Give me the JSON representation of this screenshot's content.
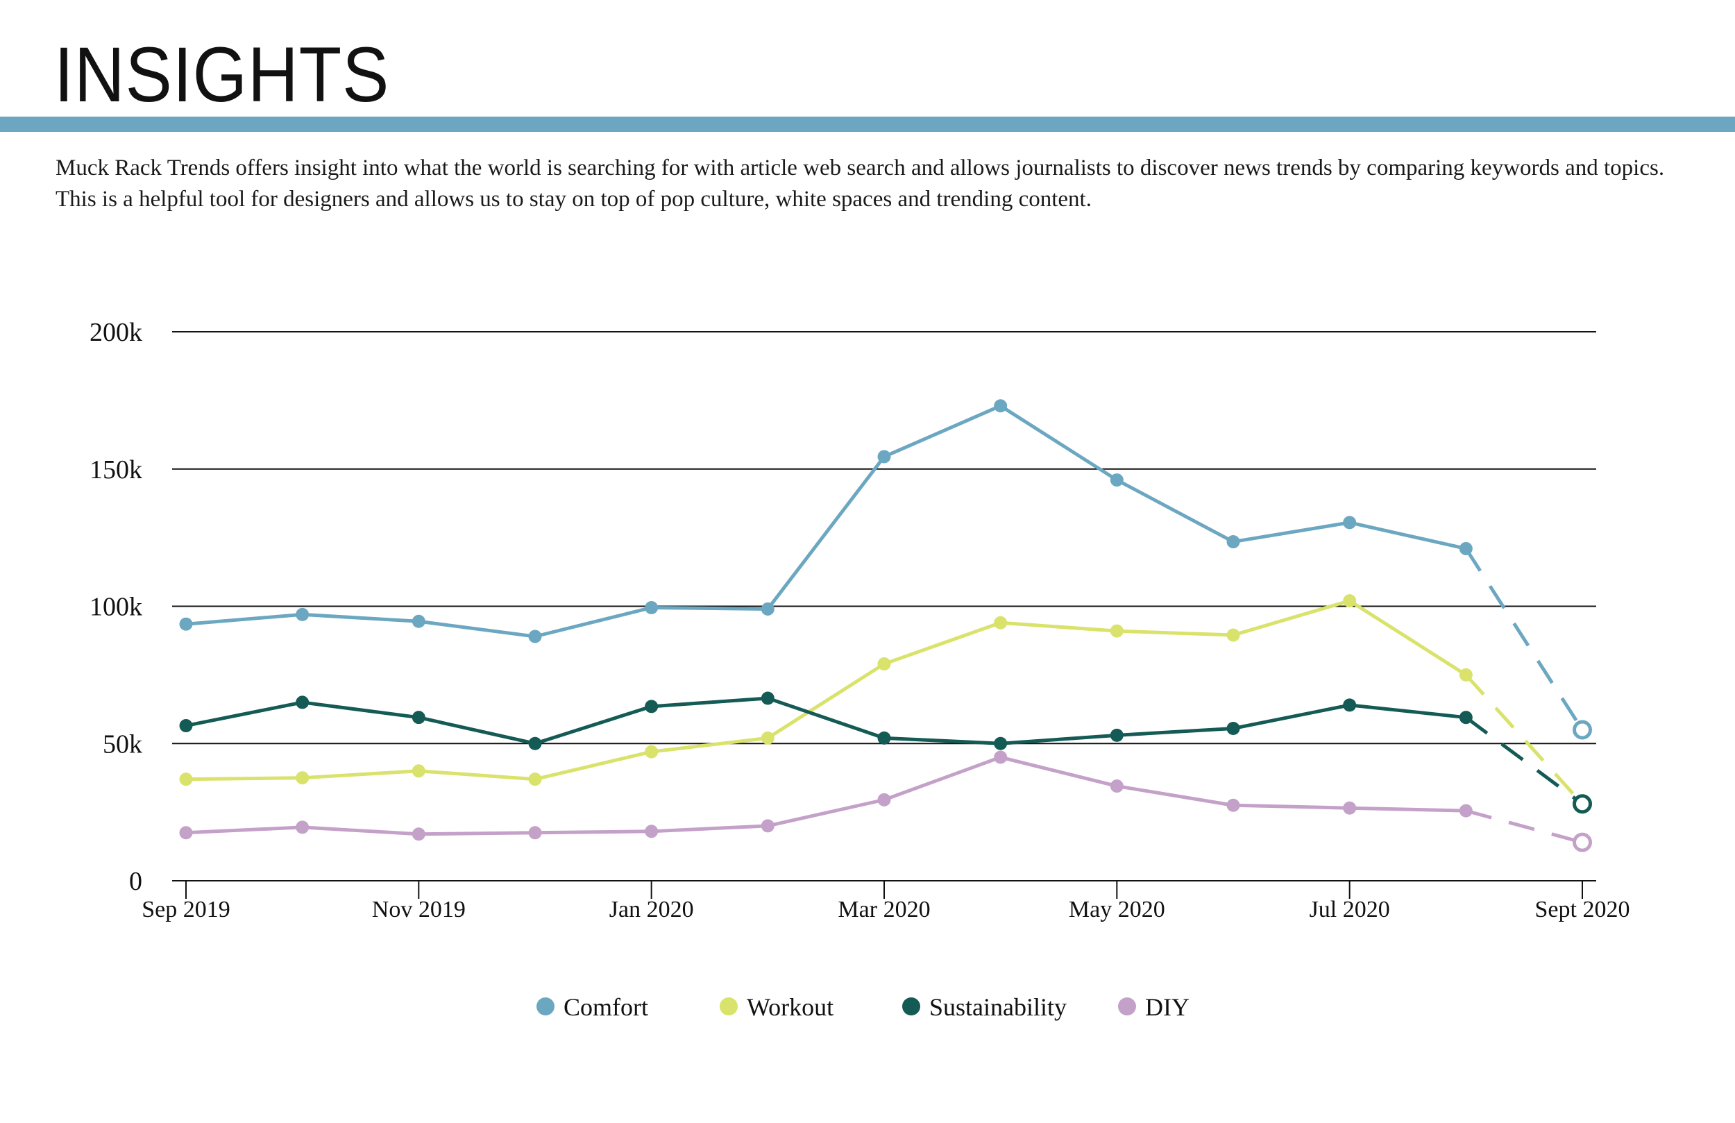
{
  "header": {
    "title": "INSIGHTS",
    "intro": "Muck Rack Trends offers insight into what the world is searching for with article web search and allows journalists to discover news trends by comparing keywords and topics. This is a helpful tool for designers and allows us to stay on top of pop culture, white spaces and trending content."
  },
  "colors": {
    "band": "#6da6c0",
    "comfort": "#6ca7c1",
    "workout": "#d9e36b",
    "sustainability": "#145a55",
    "diy": "#c4a1c8"
  },
  "chart_data": {
    "type": "line",
    "title": "",
    "xlabel": "",
    "ylabel": "",
    "ylim": [
      0,
      200000
    ],
    "y_ticks": [
      {
        "value": 0,
        "label": "0"
      },
      {
        "value": 50000,
        "label": "50k"
      },
      {
        "value": 100000,
        "label": "100k"
      },
      {
        "value": 150000,
        "label": "150k"
      },
      {
        "value": 200000,
        "label": "200k"
      }
    ],
    "x": [
      "Sep 2019",
      "Oct 2019",
      "Nov 2019",
      "Dec 2019",
      "Jan 2020",
      "Feb 2020",
      "Mar 2020",
      "Apr 2020",
      "May 2020",
      "Jun 2020",
      "Jul 2020",
      "Aug 2020",
      "Sept 2020"
    ],
    "x_tick_labels": [
      {
        "index": 0,
        "label": "Sep 2019"
      },
      {
        "index": 2,
        "label": "Nov 2019"
      },
      {
        "index": 4,
        "label": "Jan 2020"
      },
      {
        "index": 6,
        "label": "Mar 2020"
      },
      {
        "index": 8,
        "label": "May 2020"
      },
      {
        "index": 10,
        "label": "Jul 2020"
      },
      {
        "index": 12,
        "label": "Sept 2020"
      }
    ],
    "projected_from_index": 11,
    "legend_position": "bottom",
    "series": [
      {
        "name": "Comfort",
        "color": "#6ca7c1",
        "values": [
          93500,
          97000,
          94500,
          89000,
          99500,
          99000,
          154500,
          173000,
          146000,
          123500,
          130500,
          121000,
          55000
        ]
      },
      {
        "name": "Workout",
        "color": "#d9e36b",
        "values": [
          37000,
          37500,
          40000,
          37000,
          47000,
          52000,
          79000,
          94000,
          91000,
          89500,
          102000,
          75000,
          28000
        ]
      },
      {
        "name": "Sustainability",
        "color": "#145a55",
        "values": [
          56500,
          65000,
          59500,
          50000,
          63500,
          66500,
          52000,
          50000,
          53000,
          55500,
          64000,
          59500,
          28000
        ]
      },
      {
        "name": "DIY",
        "color": "#c4a1c8",
        "values": [
          17500,
          19500,
          17000,
          17500,
          18000,
          20000,
          29500,
          45000,
          34500,
          27500,
          26500,
          25500,
          14000
        ]
      }
    ]
  }
}
